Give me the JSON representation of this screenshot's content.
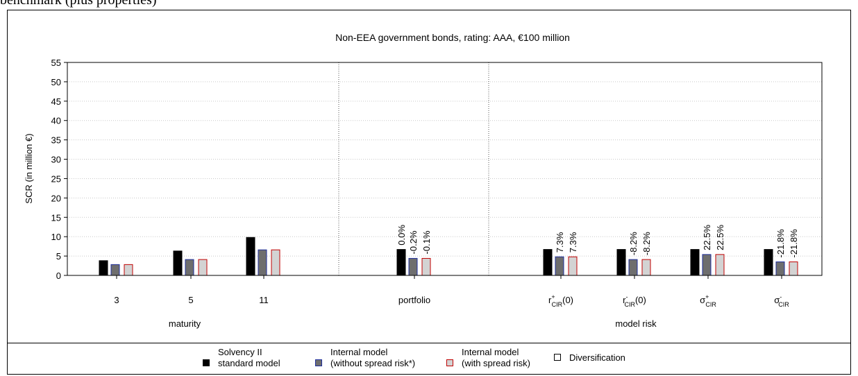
{
  "header_fragment": "benchmark (plus properties)",
  "chart_data": {
    "type": "bar",
    "title": "Non-EEA government bonds, rating: AAA, €100 million",
    "ylabel": "SCR (in million €)",
    "ylim": [
      0,
      55
    ],
    "yticks": [
      0,
      5,
      10,
      15,
      20,
      25,
      30,
      35,
      40,
      45,
      50,
      55
    ],
    "grid": true,
    "categories": [
      {
        "label": "3"
      },
      {
        "label": "5"
      },
      {
        "label": "11"
      },
      {
        "label": "portfolio"
      },
      {
        "base": "r",
        "sup": "+",
        "sub": "CIR",
        "suffix": "(0)"
      },
      {
        "base": "r",
        "sup": "-",
        "sub": "CIR",
        "suffix": "(0)"
      },
      {
        "base": "σ",
        "sup": "+",
        "sub": "CIR",
        "suffix": ""
      },
      {
        "base": "σ",
        "sup": "-",
        "sub": "CIR",
        "suffix": ""
      }
    ],
    "groups": [
      "maturity",
      "model risk"
    ],
    "series": [
      {
        "name": "Solvency II\nstandard model",
        "values": [
          3.8,
          6.3,
          9.8,
          6.7,
          6.7,
          6.7,
          6.7,
          6.7
        ],
        "fill": "#000000",
        "stroke": "#000000",
        "labels": [
          "",
          "",
          "",
          "0.0%",
          "",
          "",
          "",
          ""
        ]
      },
      {
        "name": "Internal model\n(without spread risk*)",
        "values": [
          2.8,
          4.1,
          6.6,
          4.4,
          4.8,
          4.1,
          5.4,
          3.5
        ],
        "fill": "#6e6e6e",
        "stroke": "#1f2f9c",
        "labels": [
          "",
          "",
          "",
          "-0.2%",
          "7.3%",
          "-8.2%",
          "22.5%",
          "-21.8%"
        ]
      },
      {
        "name": "Internal model\n(with spread risk)",
        "values": [
          2.8,
          4.1,
          6.6,
          4.4,
          4.8,
          4.1,
          5.4,
          3.5
        ],
        "fill": "#d3d3d3",
        "stroke": "#c00000",
        "labels": [
          "",
          "",
          "",
          "-0.1%",
          "7.3%",
          "-8.2%",
          "22.5%",
          "-21.8%"
        ]
      }
    ],
    "legend_extra": "Diversification",
    "legend_position": "bottom"
  }
}
